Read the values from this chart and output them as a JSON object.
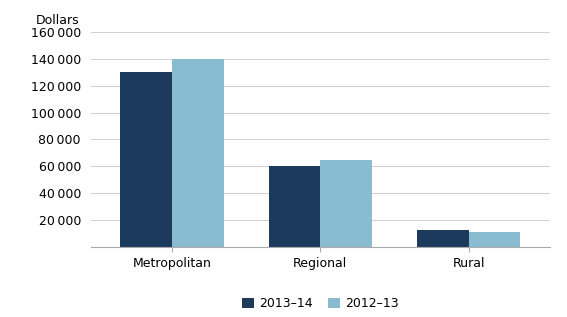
{
  "categories": [
    "Metropolitan",
    "Regional",
    "Rural"
  ],
  "series": [
    {
      "label": "2013–14",
      "color": "#1b3a5c",
      "values": [
        130000,
        60000,
        13000
      ]
    },
    {
      "label": "2012–13",
      "color": "#8abcd1",
      "values": [
        140000,
        65000,
        11000
      ]
    }
  ],
  "ylabel": "Dollars",
  "ylim": [
    0,
    160000
  ],
  "yticks": [
    20000,
    40000,
    60000,
    80000,
    100000,
    120000,
    140000,
    160000
  ],
  "bar_width": 0.35,
  "background_color": "#ffffff",
  "grid_color": "#d0d0d0",
  "legend_ncol": 2
}
